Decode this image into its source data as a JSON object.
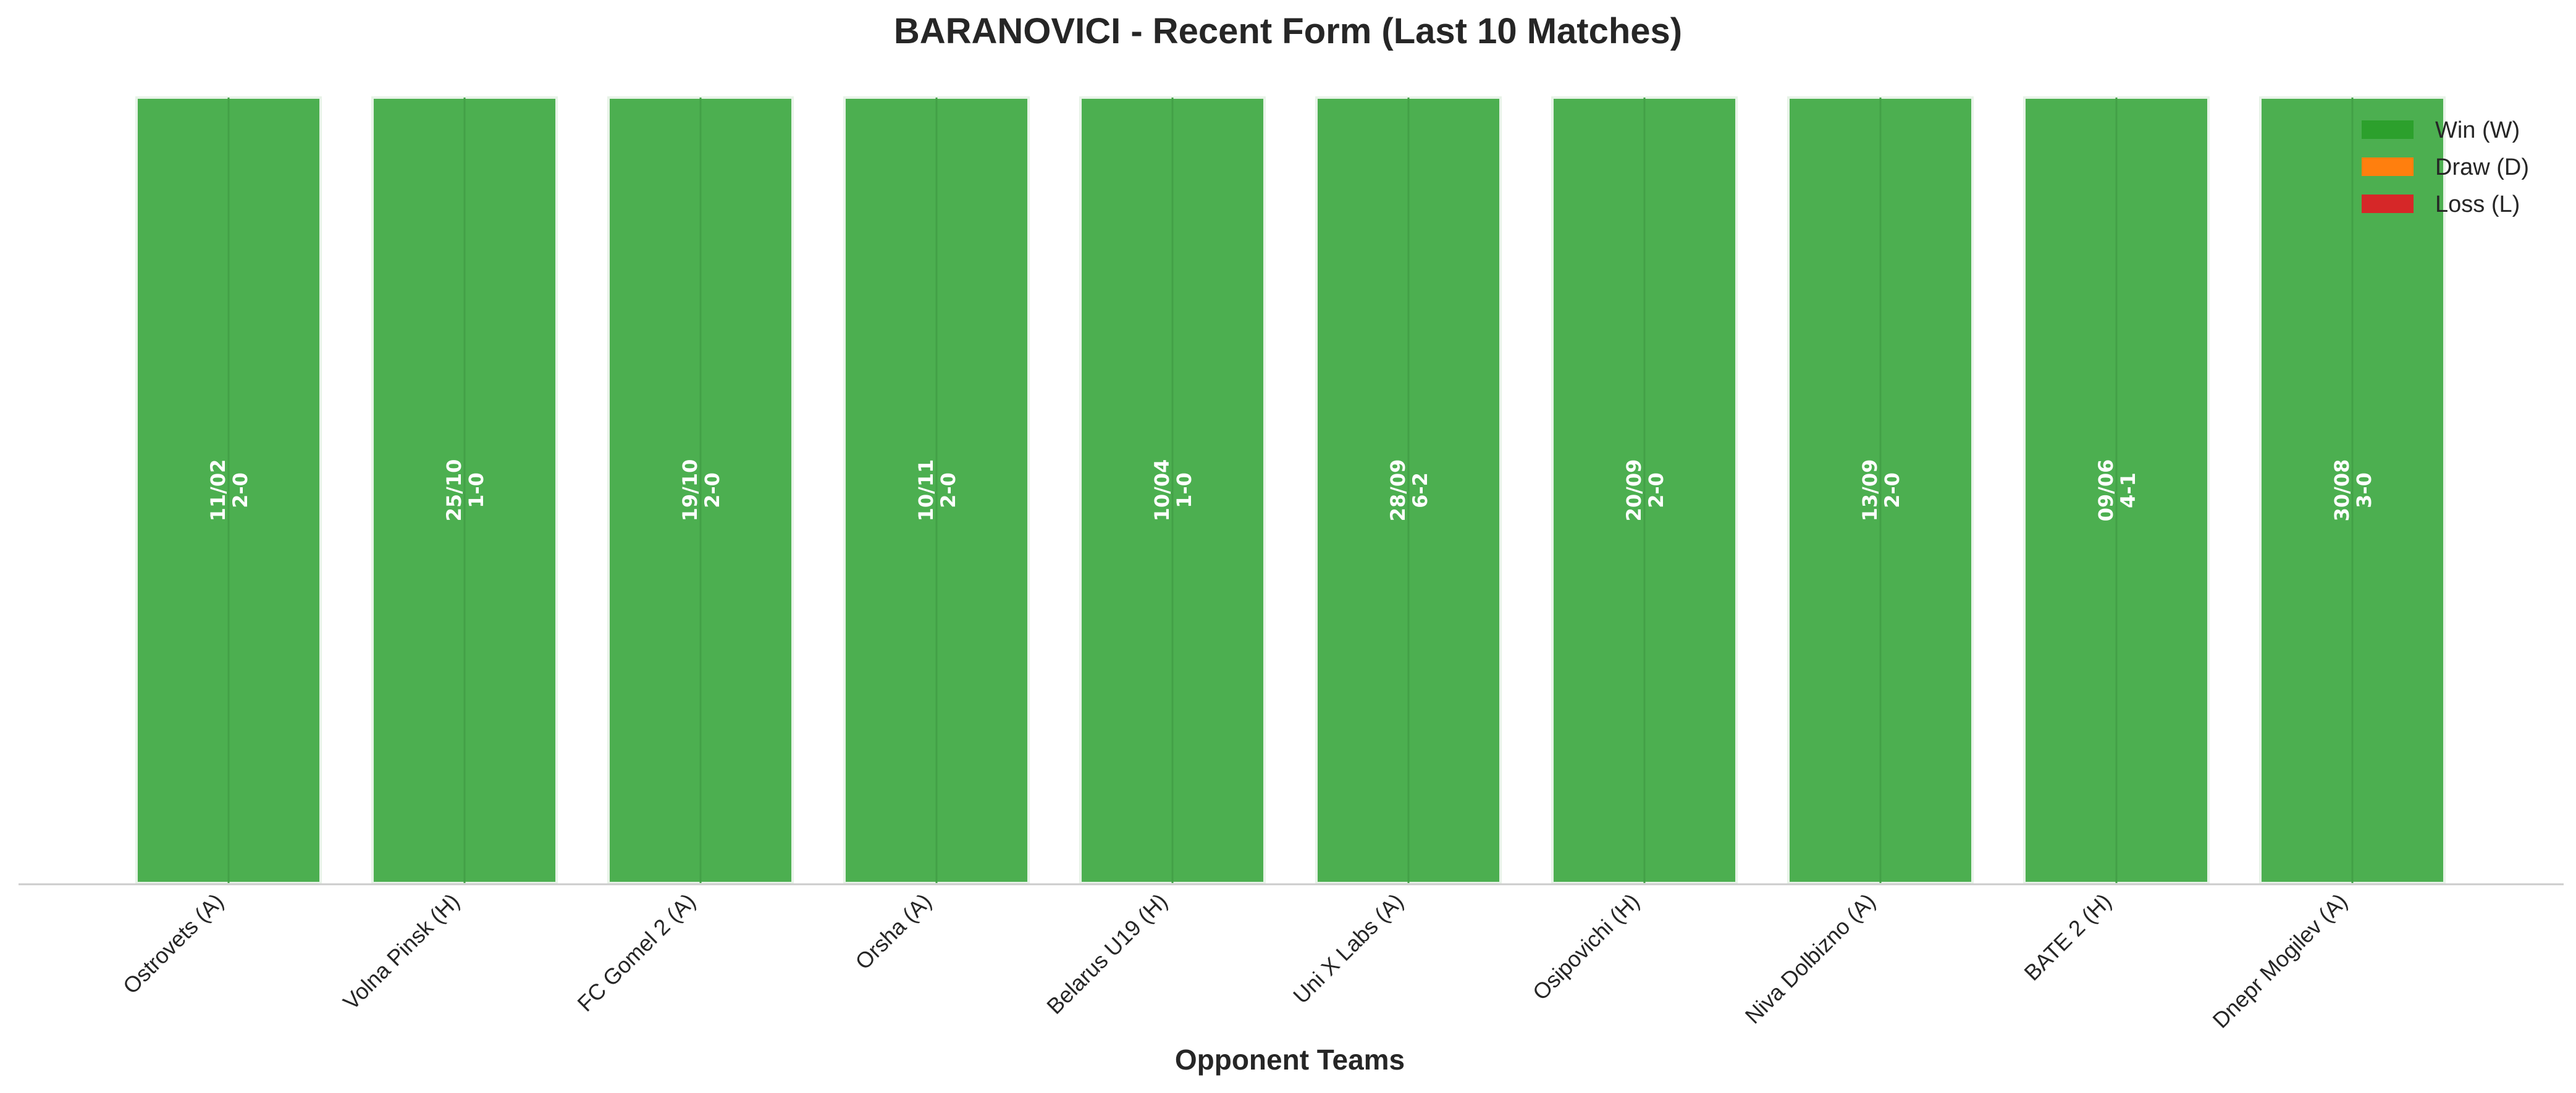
{
  "chart_data": {
    "type": "bar",
    "title": "BARANOVICI - Recent Form (Last 10 Matches)",
    "xlabel": "Opponent Teams",
    "ylabel": "",
    "ylim": [
      0,
      1
    ],
    "grid": false,
    "legend_placement": "top-right",
    "categories": [
      "Ostrovets (A)",
      "Volna Pinsk (H)",
      "FC Gomel 2 (A)",
      "Orsha (A)",
      "Belarus U19 (H)",
      "Uni X Labs (A)",
      "Osipovichi (H)",
      "Niva Dolbizno (A)",
      "BATE 2 (H)",
      "Dnepr Mogilev (A)"
    ],
    "values": [
      1,
      1,
      1,
      1,
      1,
      1,
      1,
      1,
      1,
      1
    ],
    "results": [
      "W",
      "W",
      "W",
      "W",
      "W",
      "W",
      "W",
      "W",
      "W",
      "W"
    ],
    "dates": [
      "11/02",
      "25/10",
      "19/10",
      "10/11",
      "10/04",
      "28/09",
      "20/09",
      "13/09",
      "09/06",
      "30/08"
    ],
    "scores": [
      "2-0",
      "1-0",
      "2-0",
      "2-0",
      "1-0",
      "6-2",
      "2-0",
      "2-0",
      "4-1",
      "3-0"
    ],
    "legend": [
      {
        "key": "W",
        "label": "Win (W)",
        "color": "#2ca02c"
      },
      {
        "key": "D",
        "label": "Draw (D)",
        "color": "#ff7f0e"
      },
      {
        "key": "L",
        "label": "Loss (L)",
        "color": "#d62728"
      }
    ],
    "colors": {
      "W": "#4caf50",
      "D": "#ff7f0e",
      "L": "#d62728",
      "axis": "#cccccc",
      "text": "#262626"
    }
  }
}
